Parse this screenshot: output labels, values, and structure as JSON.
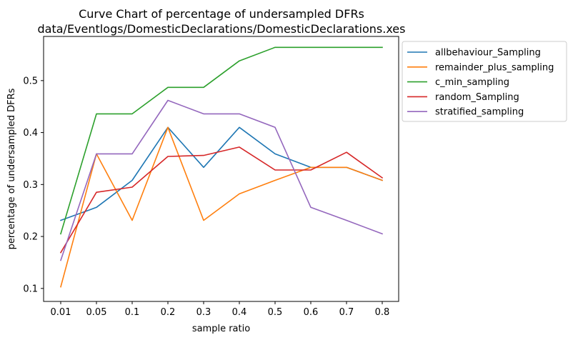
{
  "chart_data": {
    "type": "line",
    "title": "Curve Chart of percentage of undersampled DFRs",
    "subtitle": "data/Eventlogs/DomesticDeclarations/DomesticDeclarations.xes",
    "xlabel": "sample ratio",
    "ylabel": "percentage of undersampled DFRs",
    "categories": [
      "0.01",
      "0.05",
      "0.1",
      "0.2",
      "0.3",
      "0.4",
      "0.5",
      "0.6",
      "0.7",
      "0.8"
    ],
    "yticks": [
      "0.1",
      "0.2",
      "0.3",
      "0.4",
      "0.5"
    ],
    "ylim": [
      0.075,
      0.585
    ],
    "grid": false,
    "legend_position": "outside upper-right",
    "series": [
      {
        "name": "allbehaviour_Sampling",
        "color": "#1f77b4",
        "values": [
          0.231,
          0.256,
          0.308,
          0.41,
          0.333,
          0.41,
          0.359,
          0.333,
          0.333,
          0.308
        ]
      },
      {
        "name": "remainder_plus_sampling",
        "color": "#ff7f0e",
        "values": [
          0.103,
          0.359,
          0.231,
          0.41,
          0.231,
          0.282,
          0.308,
          0.333,
          0.333,
          0.308
        ]
      },
      {
        "name": "c_min_sampling",
        "color": "#2ca02c",
        "values": [
          0.205,
          0.436,
          0.436,
          0.487,
          0.487,
          0.538,
          0.564,
          0.564,
          0.564,
          0.564
        ]
      },
      {
        "name": "random_Sampling",
        "color": "#d62728",
        "values": [
          0.169,
          0.285,
          0.295,
          0.354,
          0.356,
          0.372,
          0.328,
          0.328,
          0.362,
          0.313
        ]
      },
      {
        "name": "stratified_sampling",
        "color": "#9467bd",
        "values": [
          0.154,
          0.359,
          0.359,
          0.462,
          0.436,
          0.436,
          0.41,
          0.256,
          0.231,
          0.205
        ]
      }
    ]
  }
}
